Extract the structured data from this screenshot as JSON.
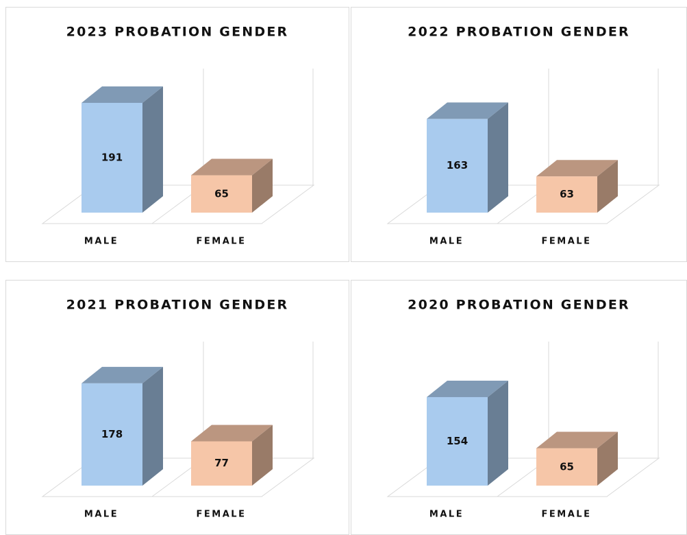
{
  "chart_data": [
    {
      "type": "bar3d",
      "title": "2023 PROBATION GENDER",
      "categories": [
        "MALE",
        "FEMALE"
      ],
      "values": [
        191,
        65
      ],
      "colors": [
        "#a9cbee",
        "#f6c6a8"
      ]
    },
    {
      "type": "bar3d",
      "title": "2022 PROBATION GENDER",
      "categories": [
        "MALE",
        "FEMALE"
      ],
      "values": [
        163,
        63
      ],
      "colors": [
        "#a9cbee",
        "#f6c6a8"
      ]
    },
    {
      "type": "bar3d",
      "title": "2021 PROBATION GENDER",
      "categories": [
        "MALE",
        "FEMALE"
      ],
      "values": [
        178,
        77
      ],
      "colors": [
        "#a9cbee",
        "#f6c6a8"
      ]
    },
    {
      "type": "bar3d",
      "title": "2020 PROBATION GENDER",
      "categories": [
        "MALE",
        "FEMALE"
      ],
      "values": [
        154,
        65
      ],
      "colors": [
        "#a9cbee",
        "#f6c6a8"
      ]
    }
  ]
}
